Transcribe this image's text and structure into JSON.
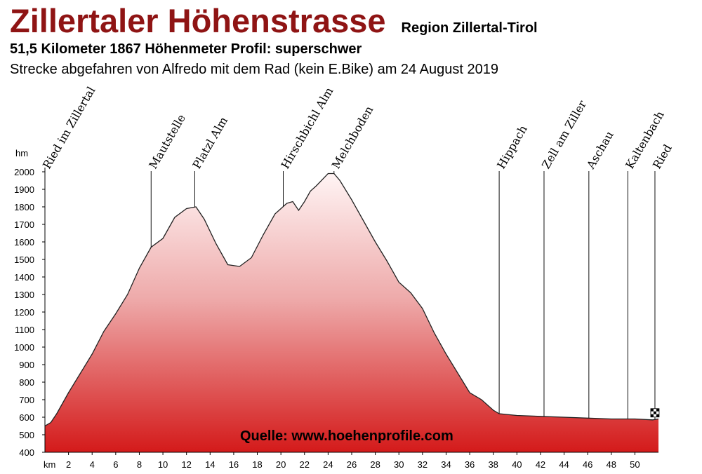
{
  "header": {
    "title": "Zillertaler Höhenstrasse",
    "region": "Region Zillertal-Tirol",
    "subtitle": "51,5 Kilometer  1867 Höhenmeter  Profil: superschwer",
    "note": "Strecke abgefahren von Alfredo mit dem Rad (kein E.Bike) am 24 August 2019"
  },
  "colors": {
    "title": "#8f1414",
    "fill_top": "#fff4f4",
    "fill_bottom": "#d41a1a"
  },
  "chart_data": {
    "type": "area",
    "ylabel": "hm",
    "xlabel": "km",
    "ylim": [
      400,
      2000
    ],
    "xlim": [
      0,
      52
    ],
    "yticks": [
      400,
      500,
      600,
      700,
      800,
      900,
      1000,
      1100,
      1200,
      1300,
      1400,
      1500,
      1600,
      1700,
      1800,
      1900,
      2000
    ],
    "xticks": [
      2,
      4,
      6,
      8,
      10,
      12,
      14,
      16,
      18,
      20,
      22,
      24,
      26,
      28,
      30,
      32,
      34,
      36,
      38,
      40,
      42,
      44,
      46,
      48,
      50
    ],
    "grid": false,
    "series": [
      {
        "x": [
          0,
          0.5,
          1,
          2,
          3,
          4,
          5,
          6,
          7,
          8,
          9,
          10,
          11,
          12,
          12.8,
          13.5,
          14.5,
          15.5,
          16.5,
          17.5,
          18.5,
          19.5,
          20.5,
          21,
          21.5,
          22,
          22.5,
          23,
          24,
          24.5,
          25,
          26,
          27,
          28,
          29,
          30,
          31,
          32,
          33,
          34,
          35,
          36,
          37,
          38,
          38.5,
          40,
          42,
          44,
          46,
          48,
          50,
          51.5,
          52
        ],
        "y": [
          550,
          570,
          620,
          740,
          850,
          960,
          1090,
          1190,
          1300,
          1450,
          1570,
          1620,
          1740,
          1790,
          1800,
          1730,
          1590,
          1470,
          1460,
          1510,
          1640,
          1760,
          1820,
          1830,
          1780,
          1830,
          1890,
          1920,
          1990,
          1990,
          1950,
          1840,
          1720,
          1600,
          1490,
          1370,
          1310,
          1220,
          1080,
          960,
          850,
          740,
          700,
          640,
          620,
          610,
          605,
          600,
          595,
          590,
          590,
          585,
          590
        ]
      }
    ],
    "places": [
      {
        "name": "Ried im Zillertal",
        "km": 0
      },
      {
        "name": "Mautstelle",
        "km": 9
      },
      {
        "name": "Platzl Alm",
        "km": 12.7
      },
      {
        "name": "Hirschbichl Alm",
        "km": 20.2
      },
      {
        "name": "Melchboden",
        "km": 24.5
      },
      {
        "name": "Hippach",
        "km": 38.5
      },
      {
        "name": "Zell am Ziller",
        "km": 42.3
      },
      {
        "name": "Aschau",
        "km": 46.1
      },
      {
        "name": "Kaltenbach",
        "km": 49.4
      },
      {
        "name": "Ried",
        "km": 51.7
      }
    ],
    "source": "Quelle: www.hoehenprofile.com"
  }
}
